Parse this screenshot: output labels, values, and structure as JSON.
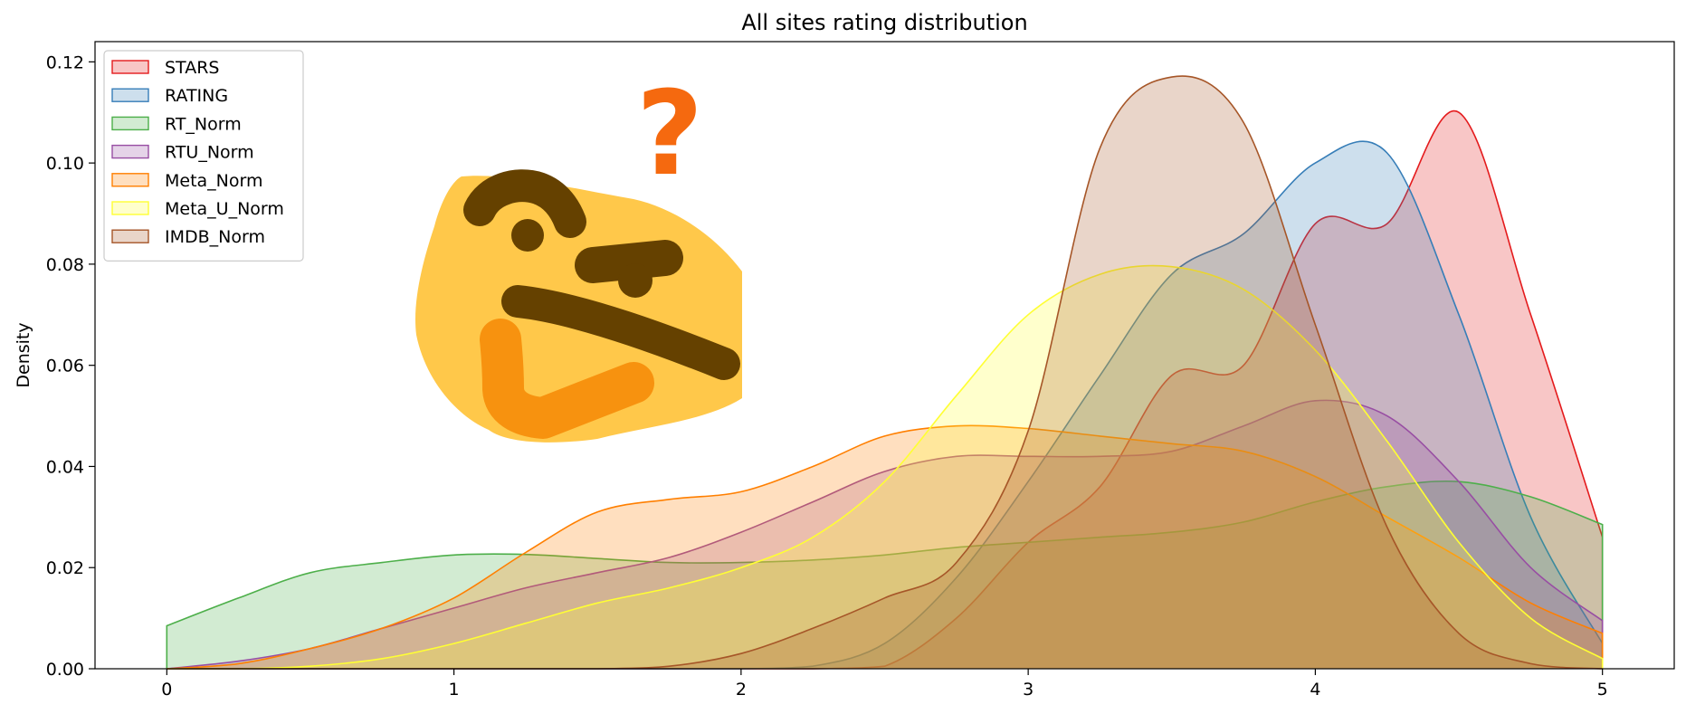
{
  "chart_data": {
    "type": "area",
    "title": "All sites rating distribution",
    "xlabel": "",
    "ylabel": "Density",
    "xlim": [
      -0.25,
      5.25
    ],
    "ylim": [
      0,
      0.124
    ],
    "x_ticks": [
      0,
      1,
      2,
      3,
      4,
      5
    ],
    "y_ticks": [
      0.0,
      0.02,
      0.04,
      0.06,
      0.08,
      0.1,
      0.12
    ],
    "y_tick_labels": [
      "0.00",
      "0.02",
      "0.04",
      "0.06",
      "0.08",
      "0.10",
      "0.12"
    ],
    "grid": false,
    "legend_position": "top-left",
    "x": [
      0,
      0.25,
      0.5,
      0.75,
      1.0,
      1.25,
      1.5,
      1.75,
      2.0,
      2.25,
      2.5,
      2.75,
      3.0,
      3.25,
      3.5,
      3.75,
      4.0,
      4.25,
      4.5,
      4.75,
      5.0
    ],
    "series": [
      {
        "name": "STARS",
        "color": "#e41a1c",
        "values": [
          0,
          0,
          0,
          0,
          0,
          0,
          0,
          0,
          0,
          0,
          0.0005,
          0.01,
          0.025,
          0.036,
          0.058,
          0.06,
          0.088,
          0.088,
          0.11,
          0.07,
          0.026
        ]
      },
      {
        "name": "RATING",
        "color": "#377eb8",
        "values": [
          0,
          0,
          0,
          0,
          0,
          0,
          0,
          0,
          0,
          0.0005,
          0.005,
          0.018,
          0.037,
          0.058,
          0.078,
          0.086,
          0.1,
          0.102,
          0.07,
          0.03,
          0.005
        ]
      },
      {
        "name": "RT_Norm",
        "color": "#4daf4a",
        "values": [
          0.0085,
          0.014,
          0.019,
          0.021,
          0.0225,
          0.0226,
          0.0218,
          0.021,
          0.021,
          0.0215,
          0.0225,
          0.024,
          0.025,
          0.026,
          0.027,
          0.029,
          0.033,
          0.036,
          0.037,
          0.034,
          0.0285
        ]
      },
      {
        "name": "RTU_Norm",
        "color": "#984ea3",
        "values": [
          0,
          0.0015,
          0.004,
          0.008,
          0.012,
          0.016,
          0.019,
          0.022,
          0.027,
          0.033,
          0.039,
          0.042,
          0.042,
          0.042,
          0.043,
          0.048,
          0.053,
          0.05,
          0.037,
          0.02,
          0.0095
        ]
      },
      {
        "name": "Meta_Norm",
        "color": "#ff7f00",
        "values": [
          0,
          0.001,
          0.004,
          0.008,
          0.014,
          0.023,
          0.031,
          0.0335,
          0.035,
          0.04,
          0.046,
          0.048,
          0.0475,
          0.046,
          0.0445,
          0.043,
          0.038,
          0.03,
          0.022,
          0.013,
          0.007
        ]
      },
      {
        "name": "Meta_U_Norm",
        "color": "#ffff33",
        "values": [
          0,
          0,
          0.0005,
          0.002,
          0.005,
          0.009,
          0.013,
          0.016,
          0.02,
          0.026,
          0.037,
          0.054,
          0.07,
          0.078,
          0.0795,
          0.075,
          0.063,
          0.045,
          0.025,
          0.01,
          0.002
        ]
      },
      {
        "name": "IMDB_Norm",
        "color": "#a65628",
        "values": [
          0,
          0,
          0,
          0,
          0,
          0,
          0,
          0.0005,
          0.003,
          0.008,
          0.014,
          0.021,
          0.047,
          0.103,
          0.117,
          0.108,
          0.068,
          0.028,
          0.007,
          0.001,
          0
        ]
      }
    ],
    "overlay_image": {
      "icon": "thinking-face-emoji-icon",
      "question_mark": "?",
      "face_color": "#ffc84a",
      "feature_color": "#654100",
      "hand_color": "#f7920f",
      "question_color": "#f5690f"
    }
  }
}
